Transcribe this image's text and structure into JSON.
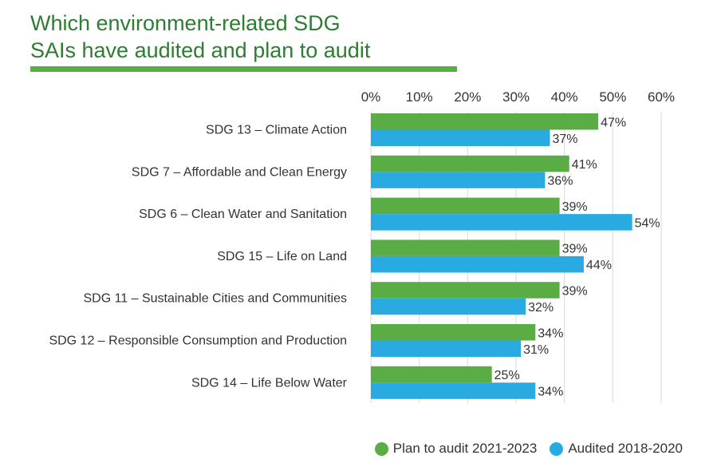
{
  "title_line1": "Which environment-related SDG",
  "title_line2": "SAIs have audited and plan to audit",
  "colors": {
    "title": "#2e7d32",
    "title_rule": "#5aac44",
    "plan": "#5aac44",
    "audited": "#29abe2",
    "grid": "#d9d9d9",
    "text": "#333333"
  },
  "chart_data": {
    "type": "bar",
    "orientation": "horizontal",
    "categories": [
      "SDG 13 – Climate Action",
      "SDG 7 – Affordable and Clean Energy",
      "SDG 6 – Clean Water and Sanitation",
      "SDG 15 – Life on Land",
      "SDG 11 – Sustainable Cities and Communities",
      "SDG 12 – Responsible Consumption and Production",
      "SDG 14 – Life Below Water"
    ],
    "series": [
      {
        "name": "Plan to audit 2021-2023",
        "color": "#5aac44",
        "values": [
          47,
          41,
          39,
          39,
          39,
          34,
          25
        ]
      },
      {
        "name": "Audited 2018-2020",
        "color": "#29abe2",
        "values": [
          37,
          36,
          54,
          44,
          32,
          31,
          34
        ]
      }
    ],
    "x_ticks": [
      "0%",
      "10%",
      "20%",
      "30%",
      "40%",
      "50%",
      "60%"
    ],
    "xlim": [
      0,
      60
    ],
    "value_suffix": "%",
    "axis_position": "top",
    "grid": true,
    "legend_position": "bottom-right"
  }
}
